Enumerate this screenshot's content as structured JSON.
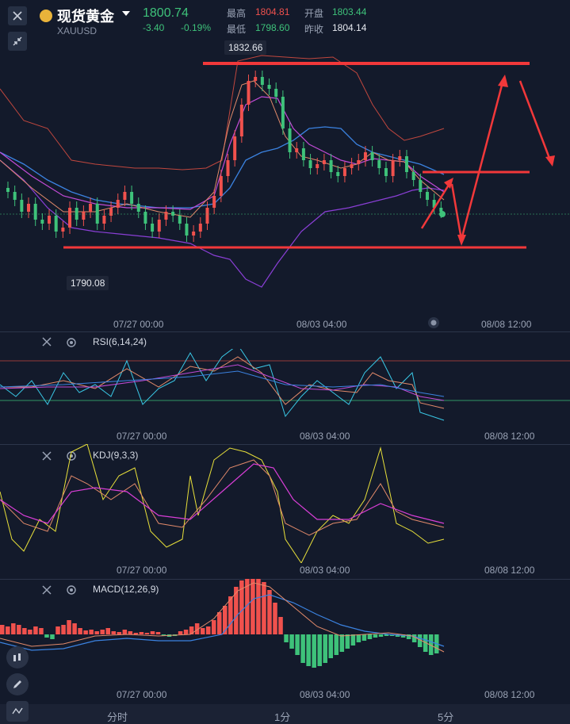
{
  "header": {
    "title": "现货黄金",
    "symbol": "XAUUSD",
    "price": "1800.74",
    "change": "-3.40",
    "change_pct": "-0.19%",
    "high_label": "最高",
    "high_value": "1804.81",
    "open_label": "开盘",
    "open_value": "1803.44",
    "low_label": "最低",
    "low_value": "1798.60",
    "prev_label": "昨收",
    "prev_value": "1804.14"
  },
  "main_chart": {
    "max_label": "1832.66",
    "min_label": "1790.08",
    "time_labels": [
      "07/27 00:00",
      "08/03 04:00",
      "08/08 12:00"
    ]
  },
  "panels": {
    "rsi": {
      "title": "RSI(6,14,24)",
      "time_labels": [
        "07/27 00:00",
        "08/03 04:00",
        "08/08 12:00"
      ]
    },
    "kdj": {
      "title": "KDJ(9,3,3)",
      "time_labels": [
        "07/27 00:00",
        "08/03 04:00",
        "08/08 12:00"
      ]
    },
    "macd": {
      "title": "MACD(12,26,9)",
      "time_labels": [
        "07/27 00:00",
        "08/03 04:00",
        "08/08 12:00"
      ]
    }
  },
  "bottom_tabs": [
    "分时",
    "1分",
    "5分"
  ],
  "colors": {
    "up": "#f0514d",
    "down": "#3ec27a",
    "bg": "#131a2b",
    "annotation": "#f2383a"
  },
  "icons": [
    "close-icon",
    "collapse-icon",
    "gold-coin-icon",
    "dropdown-icon",
    "settings-icon",
    "candle-tool-icon",
    "pencil-icon",
    "indicator-icon"
  ]
}
